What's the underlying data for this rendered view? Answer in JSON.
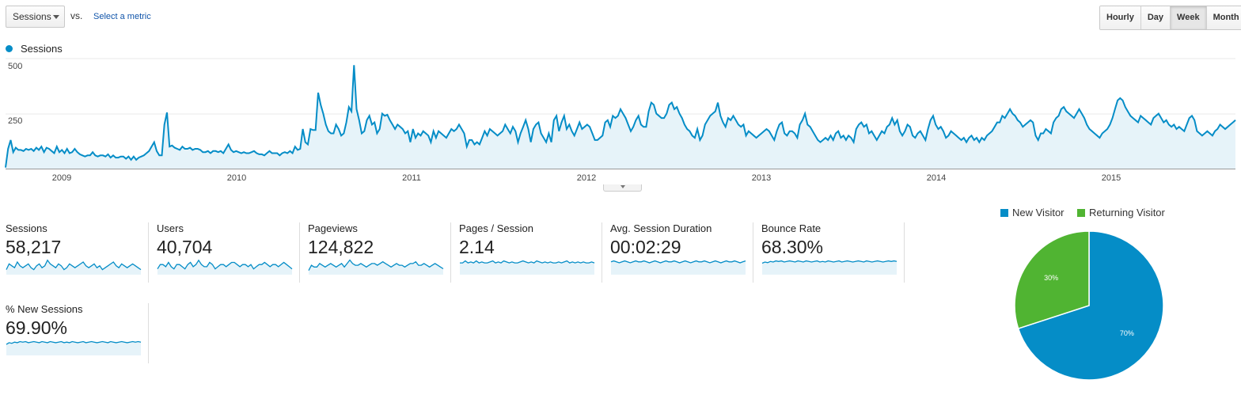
{
  "controls": {
    "metric_select": "Sessions",
    "vs_label": "vs.",
    "select_metric_link": "Select a metric",
    "periods": [
      {
        "label": "Hourly",
        "active": false
      },
      {
        "label": "Day",
        "active": false
      },
      {
        "label": "Week",
        "active": true
      },
      {
        "label": "Month",
        "active": false
      }
    ]
  },
  "legend": {
    "label": "Sessions",
    "color": "#058dc7"
  },
  "chart_data": [
    {
      "type": "area",
      "series": [
        {
          "name": "Sessions",
          "color": "#058dc7"
        }
      ],
      "y_ticks": [
        "500",
        "250"
      ],
      "ylim": [
        0,
        500
      ],
      "x_tick_labels": [
        "2009",
        "2010",
        "2011",
        "2012",
        "2013",
        "2014",
        "2015"
      ],
      "x": "weekly, Oct 2008 – Sep 2015",
      "values": [
        5,
        90,
        130,
        75,
        95,
        85,
        85,
        80,
        90,
        85,
        90,
        80,
        95,
        85,
        100,
        75,
        95,
        90,
        80,
        70,
        100,
        75,
        85,
        70,
        90,
        70,
        75,
        90,
        75,
        65,
        60,
        55,
        60,
        60,
        75,
        60,
        55,
        60,
        60,
        55,
        65,
        50,
        60,
        50,
        50,
        55,
        55,
        45,
        55,
        40,
        55,
        40,
        50,
        55,
        60,
        70,
        80,
        100,
        120,
        80,
        60,
        60,
        200,
        255,
        100,
        105,
        95,
        90,
        85,
        100,
        90,
        90,
        95,
        85,
        90,
        90,
        85,
        75,
        75,
        80,
        70,
        80,
        80,
        75,
        80,
        70,
        90,
        110,
        85,
        75,
        80,
        75,
        70,
        75,
        70,
        70,
        75,
        80,
        70,
        65,
        65,
        60,
        70,
        80,
        70,
        70,
        70,
        60,
        70,
        75,
        70,
        80,
        70,
        100,
        85,
        90,
        180,
        120,
        110,
        180,
        175,
        175,
        345,
        290,
        250,
        200,
        170,
        160,
        160,
        200,
        180,
        150,
        160,
        210,
        280,
        260,
        470,
        270,
        220,
        160,
        170,
        220,
        240,
        200,
        210,
        160,
        180,
        250,
        240,
        245,
        220,
        200,
        180,
        200,
        190,
        180,
        160,
        170,
        120,
        180,
        140,
        160,
        150,
        170,
        160,
        150,
        120,
        170,
        140,
        170,
        160,
        150,
        140,
        160,
        180,
        170,
        180,
        200,
        180,
        160,
        100,
        130,
        130,
        110,
        120,
        110,
        140,
        170,
        150,
        180,
        170,
        160,
        150,
        160,
        170,
        200,
        180,
        160,
        190,
        170,
        120,
        160,
        190,
        220,
        180,
        120,
        180,
        200,
        210,
        160,
        140,
        120,
        160,
        120,
        220,
        240,
        170,
        210,
        240,
        180,
        200,
        170,
        150,
        180,
        210,
        180,
        190,
        200,
        190,
        160,
        130,
        130,
        140,
        150,
        210,
        220,
        190,
        240,
        230,
        240,
        270,
        250,
        230,
        200,
        170,
        190,
        220,
        240,
        200,
        190,
        190,
        260,
        300,
        290,
        250,
        240,
        230,
        230,
        250,
        290,
        300,
        270,
        280,
        250,
        230,
        200,
        180,
        170,
        150,
        140,
        180,
        130,
        150,
        200,
        220,
        240,
        250,
        260,
        300,
        240,
        210,
        190,
        230,
        220,
        240,
        220,
        200,
        190,
        200,
        150,
        170,
        160,
        150,
        140,
        150,
        160,
        170,
        180,
        170,
        150,
        130,
        170,
        200,
        210,
        160,
        150,
        170,
        170,
        160,
        140,
        200,
        220,
        250,
        200,
        190,
        170,
        150,
        130,
        120,
        130,
        140,
        130,
        150,
        130,
        160,
        170,
        140,
        150,
        130,
        150,
        140,
        120,
        180,
        200,
        210,
        190,
        200,
        160,
        170,
        150,
        130,
        150,
        170,
        160,
        190,
        200,
        230,
        200,
        220,
        170,
        150,
        170,
        200,
        190,
        150,
        140,
        160,
        170,
        150,
        130,
        180,
        220,
        240,
        200,
        180,
        190,
        170,
        140,
        150,
        170,
        160,
        150,
        140,
        130,
        140,
        120,
        140,
        150,
        130,
        140,
        120,
        140,
        130,
        150,
        160,
        170,
        190,
        210,
        210,
        240,
        230,
        250,
        270,
        250,
        240,
        220,
        210,
        190,
        200,
        210,
        220,
        210,
        150,
        130,
        160,
        160,
        180,
        170,
        160,
        210,
        230,
        240,
        270,
        280,
        260,
        250,
        240,
        230,
        250,
        270,
        250,
        230,
        200,
        180,
        170,
        160,
        150,
        140,
        160,
        170,
        180,
        200,
        230,
        270,
        310,
        320,
        310,
        280,
        260,
        240,
        230,
        220,
        210,
        240,
        230,
        220,
        210,
        200,
        230,
        240,
        250,
        230,
        210,
        220,
        200,
        190,
        200,
        180,
        190,
        180,
        170,
        200,
        230,
        240,
        220,
        170,
        160,
        150,
        160,
        170,
        160,
        150,
        170,
        180,
        200,
        190,
        180,
        190,
        200,
        210,
        220
      ]
    },
    {
      "type": "line",
      "series": [
        {
          "name": "Sessions"
        }
      ],
      "ylim": [
        0,
        500
      ],
      "values": [
        45,
        60,
        55,
        50,
        65,
        55,
        50,
        55,
        60,
        50,
        45,
        55,
        60,
        50,
        55,
        70,
        60,
        55,
        50,
        60,
        55,
        45,
        50,
        60,
        55,
        50,
        55,
        60,
        65,
        55,
        50,
        55,
        60,
        50,
        55,
        45,
        50,
        55,
        60,
        65,
        55,
        50,
        60,
        55,
        50,
        55,
        60,
        55,
        50,
        45
      ]
    },
    {
      "type": "line",
      "series": [
        {
          "name": "Users"
        }
      ],
      "ylim": [
        0,
        500
      ],
      "values": [
        45,
        55,
        55,
        50,
        60,
        50,
        45,
        55,
        55,
        50,
        45,
        55,
        60,
        50,
        55,
        65,
        55,
        50,
        50,
        60,
        55,
        45,
        50,
        55,
        55,
        50,
        55,
        60,
        60,
        55,
        50,
        55,
        55,
        50,
        55,
        45,
        50,
        55,
        55,
        60,
        55,
        50,
        55,
        55,
        50,
        55,
        60,
        55,
        50,
        45
      ]
    },
    {
      "type": "line",
      "series": [
        {
          "name": "Pageviews"
        }
      ],
      "ylim": [
        0,
        500
      ],
      "values": [
        40,
        55,
        50,
        50,
        60,
        55,
        50,
        55,
        60,
        55,
        50,
        55,
        60,
        50,
        60,
        70,
        60,
        55,
        55,
        60,
        55,
        50,
        55,
        60,
        60,
        55,
        60,
        65,
        60,
        55,
        50,
        55,
        60,
        55,
        55,
        50,
        55,
        60,
        60,
        65,
        55,
        55,
        60,
        55,
        50,
        55,
        60,
        55,
        50,
        45
      ]
    },
    {
      "type": "line",
      "series": [
        {
          "name": "Pages / Session"
        }
      ],
      "ylim": [
        0,
        500
      ],
      "values": [
        40,
        40,
        42,
        40,
        41,
        40,
        42,
        40,
        41,
        40,
        40,
        41,
        42,
        40,
        41,
        40,
        42,
        41,
        40,
        41,
        40,
        40,
        41,
        42,
        41,
        40,
        41,
        40,
        42,
        41,
        40,
        41,
        40,
        41,
        40,
        40,
        41,
        40,
        41,
        42,
        40,
        41,
        40,
        41,
        40,
        41,
        40,
        40,
        41,
        40
      ]
    },
    {
      "type": "line",
      "series": [
        {
          "name": "Avg. Session Duration"
        }
      ],
      "ylim": [
        0,
        500
      ],
      "values": [
        42,
        43,
        42,
        41,
        42,
        43,
        42,
        41,
        42,
        43,
        42,
        42,
        43,
        42,
        41,
        42,
        43,
        42,
        41,
        42,
        43,
        42,
        42,
        43,
        42,
        41,
        42,
        43,
        42,
        41,
        42,
        43,
        42,
        42,
        43,
        42,
        41,
        42,
        43,
        42,
        41,
        42,
        43,
        42,
        42,
        43,
        42,
        41,
        42,
        43
      ]
    },
    {
      "type": "line",
      "series": [
        {
          "name": "Bounce Rate"
        }
      ],
      "ylim": [
        0,
        100
      ],
      "values": [
        66,
        68,
        67,
        69,
        68,
        70,
        69,
        70,
        68,
        69,
        70,
        69,
        68,
        70,
        69,
        68,
        70,
        69,
        68,
        69,
        70,
        68,
        69,
        68,
        70,
        69,
        68,
        69,
        70,
        68,
        69,
        70,
        69,
        68,
        69,
        70,
        69,
        68,
        70,
        69,
        68,
        69,
        70,
        69,
        68,
        69,
        70,
        69,
        70,
        69
      ]
    },
    {
      "type": "line",
      "series": [
        {
          "name": "% New Sessions"
        }
      ],
      "ylim": [
        0,
        100
      ],
      "values": [
        64,
        67,
        66,
        68,
        67,
        69,
        68,
        69,
        67,
        68,
        69,
        68,
        67,
        69,
        68,
        67,
        69,
        68,
        67,
        68,
        69,
        67,
        68,
        67,
        69,
        68,
        67,
        68,
        69,
        67,
        68,
        69,
        68,
        67,
        68,
        69,
        68,
        67,
        69,
        68,
        67,
        68,
        69,
        68,
        67,
        68,
        69,
        68,
        69,
        68
      ]
    },
    {
      "type": "pie",
      "slices": [
        {
          "label": "New Visitor",
          "value": 70,
          "value_label": "70%",
          "color": "#058dc7"
        },
        {
          "label": "Returning Visitor",
          "value": 30,
          "value_label": "30%",
          "color": "#50b432"
        }
      ]
    }
  ],
  "scorecards": [
    {
      "label": "Sessions",
      "value": "58,217"
    },
    {
      "label": "Users",
      "value": "40,704"
    },
    {
      "label": "Pageviews",
      "value": "124,822"
    },
    {
      "label": "Pages / Session",
      "value": "2.14"
    },
    {
      "label": "Avg. Session Duration",
      "value": "00:02:29"
    },
    {
      "label": "Bounce Rate",
      "value": "68.30%"
    },
    {
      "label": "% New Sessions",
      "value": "69.90%"
    }
  ]
}
